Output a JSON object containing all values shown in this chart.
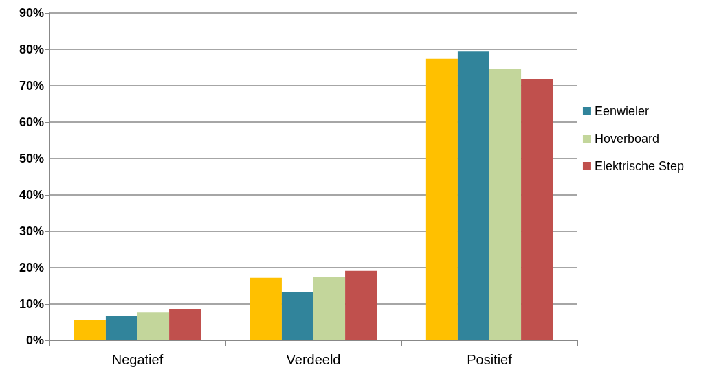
{
  "chart_data": {
    "type": "bar",
    "categories": [
      "Negatief",
      "Verdeeld",
      "Positief"
    ],
    "series": [
      {
        "color": "#ffc000",
        "values": [
          5.5,
          17.2,
          77.4
        ]
      },
      {
        "name": "Eenwieler",
        "color": "#31849b",
        "values": [
          6.8,
          13.4,
          79.4
        ]
      },
      {
        "name": "Hoverboard",
        "color": "#c3d69b",
        "values": [
          7.7,
          17.4,
          74.7
        ]
      },
      {
        "name": "Elektrische Step",
        "color": "#c0504d",
        "values": [
          8.7,
          19.1,
          71.9
        ]
      }
    ],
    "ylim": [
      0,
      90
    ],
    "yticks": [
      {
        "value": 0,
        "label": "0%"
      },
      {
        "value": 10,
        "label": "10%"
      },
      {
        "value": 20,
        "label": "20%"
      },
      {
        "value": 30,
        "label": "30%"
      },
      {
        "value": 40,
        "label": "40%"
      },
      {
        "value": 50,
        "label": "50%"
      },
      {
        "value": 60,
        "label": "60%"
      },
      {
        "value": 70,
        "label": "70%"
      },
      {
        "value": 80,
        "label": "80%"
      },
      {
        "value": 90,
        "label": "90%"
      }
    ],
    "grid": "y",
    "legend": "right"
  }
}
